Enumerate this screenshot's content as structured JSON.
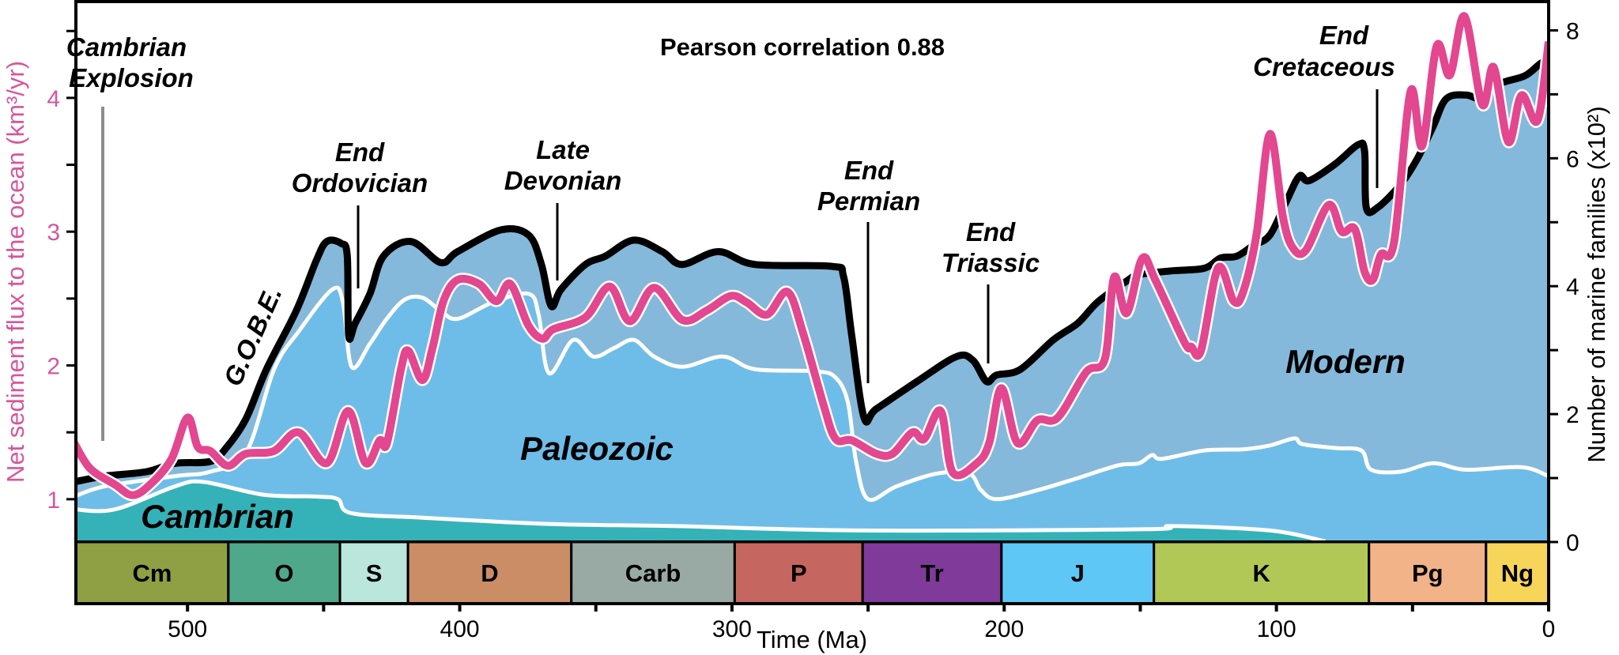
{
  "chart_data": {
    "type": "area",
    "annotation": "Pearson correlation 0.88",
    "x_axis": {
      "label": "Time (Ma)",
      "range": [
        541,
        0
      ],
      "ticks": [
        500,
        400,
        300,
        200,
        100,
        0
      ],
      "minor_ticks": [
        450,
        350,
        250,
        150,
        50
      ]
    },
    "y_left": {
      "label": "Net sediment flux to the ocean (km³/yr)",
      "range": [
        0.68,
        4.72
      ],
      "ticks": [
        1,
        2,
        3,
        4
      ],
      "minor_ticks": [
        1.5,
        2.5,
        3.5,
        4.5
      ],
      "color": "#d8559a"
    },
    "y_right": {
      "label": "Number of marine families (x10²)",
      "range": [
        0,
        8.45
      ],
      "ticks": [
        0,
        2,
        4,
        6,
        8
      ],
      "minor_ticks": [
        1,
        3,
        5,
        7
      ]
    },
    "colors": {
      "cambrian": "#35b2b8",
      "paleozoic": "#6ebde9",
      "modern": "#84b9db",
      "total_line": "#000000",
      "flux_line": "#e2478f"
    },
    "fauna_labels": {
      "cambrian": "Cambrian",
      "paleozoic": "Paleozoic",
      "modern": "Modern"
    },
    "series": [
      {
        "key": "total_diversity",
        "axis": "right",
        "points": [
          [
            541.6,
            0.94
          ],
          [
            530.5,
            1.03
          ],
          [
            515,
            1.1
          ],
          [
            504.6,
            1.23
          ],
          [
            491.6,
            1.26
          ],
          [
            486,
            1.46
          ],
          [
            478.6,
            1.92
          ],
          [
            471,
            2.7
          ],
          [
            460,
            3.62
          ],
          [
            452.6,
            4.41
          ],
          [
            448.8,
            4.7
          ],
          [
            443.6,
            4.67
          ],
          [
            441.3,
            4.47
          ],
          [
            440.8,
            3.23
          ],
          [
            438.4,
            3.42
          ],
          [
            433,
            3.88
          ],
          [
            428,
            4.47
          ],
          [
            418,
            4.7
          ],
          [
            407,
            4.37
          ],
          [
            400.8,
            4.54
          ],
          [
            384.9,
            4.88
          ],
          [
            374.7,
            4.8
          ],
          [
            370,
            4.34
          ],
          [
            366.4,
            3.69
          ],
          [
            362.8,
            3.95
          ],
          [
            353.8,
            4.34
          ],
          [
            346.5,
            4.47
          ],
          [
            336,
            4.72
          ],
          [
            325.6,
            4.54
          ],
          [
            318.3,
            4.34
          ],
          [
            305,
            4.54
          ],
          [
            291.6,
            4.34
          ],
          [
            263.4,
            4.31
          ],
          [
            259,
            4.15
          ],
          [
            256,
            3.23
          ],
          [
            251.5,
            1.95
          ],
          [
            247,
            2.08
          ],
          [
            232,
            2.51
          ],
          [
            217.5,
            2.9
          ],
          [
            211.5,
            2.84
          ],
          [
            206.5,
            2.51
          ],
          [
            202.8,
            2.61
          ],
          [
            194,
            2.7
          ],
          [
            182,
            3.16
          ],
          [
            173,
            3.42
          ],
          [
            165.7,
            3.75
          ],
          [
            155,
            4.08
          ],
          [
            150.5,
            4.18
          ],
          [
            138.5,
            4.24
          ],
          [
            126.5,
            4.28
          ],
          [
            120.5,
            4.44
          ],
          [
            114.5,
            4.47
          ],
          [
            108.4,
            4.64
          ],
          [
            102.4,
            4.8
          ],
          [
            96.4,
            5.32
          ],
          [
            91.6,
            5.72
          ],
          [
            88,
            5.65
          ],
          [
            78.4,
            5.91
          ],
          [
            70,
            6.21
          ],
          [
            67.6,
            6.11
          ],
          [
            67,
            5.23
          ],
          [
            62.8,
            5.23
          ],
          [
            54.4,
            5.59
          ],
          [
            48.4,
            5.98
          ],
          [
            42.4,
            6.5
          ],
          [
            37.6,
            6.93
          ],
          [
            30.4,
            6.99
          ],
          [
            24.4,
            6.93
          ],
          [
            18.3,
            7.16
          ],
          [
            8.7,
            7.29
          ],
          [
            2.7,
            7.49
          ],
          [
            0,
            7.49
          ]
        ]
      },
      {
        "key": "paleozoic_top",
        "axis": "right",
        "points": [
          [
            541.6,
            0.71
          ],
          [
            530.5,
            0.87
          ],
          [
            504.6,
            1.03
          ],
          [
            491.6,
            1.1
          ],
          [
            478.6,
            1.39
          ],
          [
            468.2,
            2.7
          ],
          [
            459.2,
            3.29
          ],
          [
            446.8,
            3.95
          ],
          [
            442.9,
            3.75
          ],
          [
            439.7,
            2.74
          ],
          [
            433,
            3.1
          ],
          [
            426.8,
            3.49
          ],
          [
            420.2,
            3.79
          ],
          [
            413.7,
            3.82
          ],
          [
            407.2,
            3.62
          ],
          [
            400.8,
            3.49
          ],
          [
            387.7,
            3.75
          ],
          [
            374.7,
            3.88
          ],
          [
            371,
            3.55
          ],
          [
            367.2,
            2.64
          ],
          [
            358.3,
            3.16
          ],
          [
            350.9,
            2.9
          ],
          [
            343.4,
            3.03
          ],
          [
            336,
            3.16
          ],
          [
            328.6,
            2.9
          ],
          [
            318.2,
            2.74
          ],
          [
            303.4,
            2.9
          ],
          [
            291.5,
            2.7
          ],
          [
            269.3,
            2.67
          ],
          [
            261.9,
            2.57
          ],
          [
            257.4,
            2.18
          ],
          [
            254.4,
            1.26
          ],
          [
            250,
            0.67
          ],
          [
            239.6,
            0.87
          ],
          [
            224.8,
            1.07
          ],
          [
            212.9,
            1.07
          ],
          [
            208.5,
            0.81
          ],
          [
            202.6,
            0.67
          ],
          [
            187.8,
            0.81
          ],
          [
            173,
            1.0
          ],
          [
            158.1,
            1.2
          ],
          [
            150.5,
            1.23
          ],
          [
            145.7,
            1.36
          ],
          [
            142,
            1.3
          ],
          [
            126.5,
            1.43
          ],
          [
            112,
            1.45
          ],
          [
            102.4,
            1.51
          ],
          [
            93.4,
            1.62
          ],
          [
            90.4,
            1.53
          ],
          [
            78.4,
            1.47
          ],
          [
            68.8,
            1.43
          ],
          [
            65.2,
            1.13
          ],
          [
            54.4,
            1.1
          ],
          [
            42.4,
            1.23
          ],
          [
            30.4,
            1.13
          ],
          [
            10,
            1.17
          ],
          [
            0,
            1.03
          ]
        ]
      },
      {
        "key": "cambrian_top",
        "axis": "right",
        "points": [
          [
            541.6,
            0.51
          ],
          [
            526.7,
            0.51
          ],
          [
            504.6,
            0.87
          ],
          [
            494.2,
            0.94
          ],
          [
            472.2,
            0.74
          ],
          [
            452.6,
            0.71
          ],
          [
            444.8,
            0.67
          ],
          [
            439.7,
            0.45
          ],
          [
            413.7,
            0.38
          ],
          [
            365.9,
            0.28
          ],
          [
            321.2,
            0.25
          ],
          [
            251.5,
            0.18
          ],
          [
            148,
            0.2
          ],
          [
            138.5,
            0.25
          ],
          [
            102.4,
            0.18
          ],
          [
            82,
            0.01
          ]
        ]
      },
      {
        "key": "sediment_flux",
        "axis": "left",
        "points": [
          [
            541.6,
            1.42
          ],
          [
            535.8,
            1.23
          ],
          [
            526.7,
            1.11
          ],
          [
            520.2,
            1.03
          ],
          [
            513.7,
            1.11
          ],
          [
            505.9,
            1.3
          ],
          [
            500,
            1.61
          ],
          [
            496.2,
            1.39
          ],
          [
            491.6,
            1.36
          ],
          [
            485.2,
            1.25
          ],
          [
            478.6,
            1.34
          ],
          [
            468.3,
            1.36
          ],
          [
            459.2,
            1.5
          ],
          [
            448.8,
            1.27
          ],
          [
            441,
            1.66
          ],
          [
            434.6,
            1.27
          ],
          [
            429.4,
            1.44
          ],
          [
            426.7,
            1.42
          ],
          [
            421.5,
            1.98
          ],
          [
            418.9,
            2.11
          ],
          [
            413.7,
            1.89
          ],
          [
            409.9,
            2.14
          ],
          [
            406,
            2.48
          ],
          [
            400.8,
            2.64
          ],
          [
            393,
            2.61
          ],
          [
            386.5,
            2.48
          ],
          [
            381.4,
            2.61
          ],
          [
            374.8,
            2.3
          ],
          [
            369.6,
            2.2
          ],
          [
            365.7,
            2.27
          ],
          [
            353.8,
            2.36
          ],
          [
            344.9,
            2.59
          ],
          [
            337.5,
            2.33
          ],
          [
            328.6,
            2.58
          ],
          [
            318.2,
            2.34
          ],
          [
            309.3,
            2.41
          ],
          [
            300.4,
            2.52
          ],
          [
            294.5,
            2.47
          ],
          [
            287.1,
            2.38
          ],
          [
            279.6,
            2.55
          ],
          [
            273.7,
            2.23
          ],
          [
            266.3,
            1.7
          ],
          [
            261.9,
            1.45
          ],
          [
            256,
            1.44
          ],
          [
            247,
            1.34
          ],
          [
            241,
            1.34
          ],
          [
            233.7,
            1.5
          ],
          [
            229.4,
            1.45
          ],
          [
            223.3,
            1.66
          ],
          [
            218.9,
            1.2
          ],
          [
            210,
            1.27
          ],
          [
            205.5,
            1.42
          ],
          [
            201,
            1.83
          ],
          [
            195.1,
            1.42
          ],
          [
            187.8,
            1.59
          ],
          [
            180.3,
            1.61
          ],
          [
            169.9,
            1.95
          ],
          [
            163,
            2.05
          ],
          [
            159.6,
            2.66
          ],
          [
            155,
            2.39
          ],
          [
            149.3,
            2.8
          ],
          [
            144.5,
            2.64
          ],
          [
            133.7,
            2.17
          ],
          [
            131.3,
            2.14
          ],
          [
            127.7,
            2.11
          ],
          [
            121.4,
            2.73
          ],
          [
            115.7,
            2.48
          ],
          [
            112.2,
            2.55
          ],
          [
            107.3,
            2.98
          ],
          [
            102.4,
            3.73
          ],
          [
            97.6,
            3.11
          ],
          [
            94,
            2.88
          ],
          [
            89.2,
            2.86
          ],
          [
            80.8,
            3.2
          ],
          [
            76,
            3.0
          ],
          [
            71.2,
            3.02
          ],
          [
            67.6,
            2.7
          ],
          [
            64.6,
            2.64
          ],
          [
            61.6,
            2.83
          ],
          [
            56.8,
            2.92
          ],
          [
            50.7,
            4.05
          ],
          [
            46.5,
            3.64
          ],
          [
            41.1,
            4.39
          ],
          [
            36.3,
            4.17
          ],
          [
            30.9,
            4.61
          ],
          [
            24.4,
            3.95
          ],
          [
            20.2,
            4.23
          ],
          [
            14.8,
            3.67
          ],
          [
            10,
            4.02
          ],
          [
            4.1,
            3.83
          ],
          [
            0,
            4.42
          ]
        ]
      }
    ],
    "periods": [
      {
        "label": "Cm",
        "start": 541,
        "end": 485,
        "color": "#8ea043"
      },
      {
        "label": "O",
        "start": 485,
        "end": 444,
        "color": "#4fa88a"
      },
      {
        "label": "S",
        "start": 444,
        "end": 419,
        "color": "#bae6dc"
      },
      {
        "label": "D",
        "start": 419,
        "end": 359,
        "color": "#cb8d66"
      },
      {
        "label": "Carb",
        "start": 359,
        "end": 299,
        "color": "#98aaa3"
      },
      {
        "label": "P",
        "start": 299,
        "end": 252,
        "color": "#c66661"
      },
      {
        "label": "Tr",
        "start": 252,
        "end": 201,
        "color": "#7f3a9a"
      },
      {
        "label": "J",
        "start": 201,
        "end": 145,
        "color": "#5ec7f6"
      },
      {
        "label": "K",
        "start": 145,
        "end": 66,
        "color": "#b1c857"
      },
      {
        "label": "Pg",
        "start": 66,
        "end": 23,
        "color": "#f2b389"
      },
      {
        "label": "Ng",
        "start": 23,
        "end": 0,
        "color": "#f7d55b"
      }
    ],
    "events": [
      {
        "lines": [
          "Cambrian",
          "Explosion"
        ],
        "age": 538
      },
      {
        "lines": [
          "G.O.B.E."
        ]
      },
      {
        "lines": [
          "End",
          "Ordovician"
        ],
        "age": 441
      },
      {
        "lines": [
          "Late",
          "Devonian"
        ],
        "age": 365
      },
      {
        "lines": [
          "End",
          "Permian"
        ],
        "age": 250
      },
      {
        "lines": [
          "End",
          "Triassic"
        ],
        "age": 206
      },
      {
        "lines": [
          "End",
          "Cretaceous"
        ],
        "age": 63
      }
    ]
  }
}
